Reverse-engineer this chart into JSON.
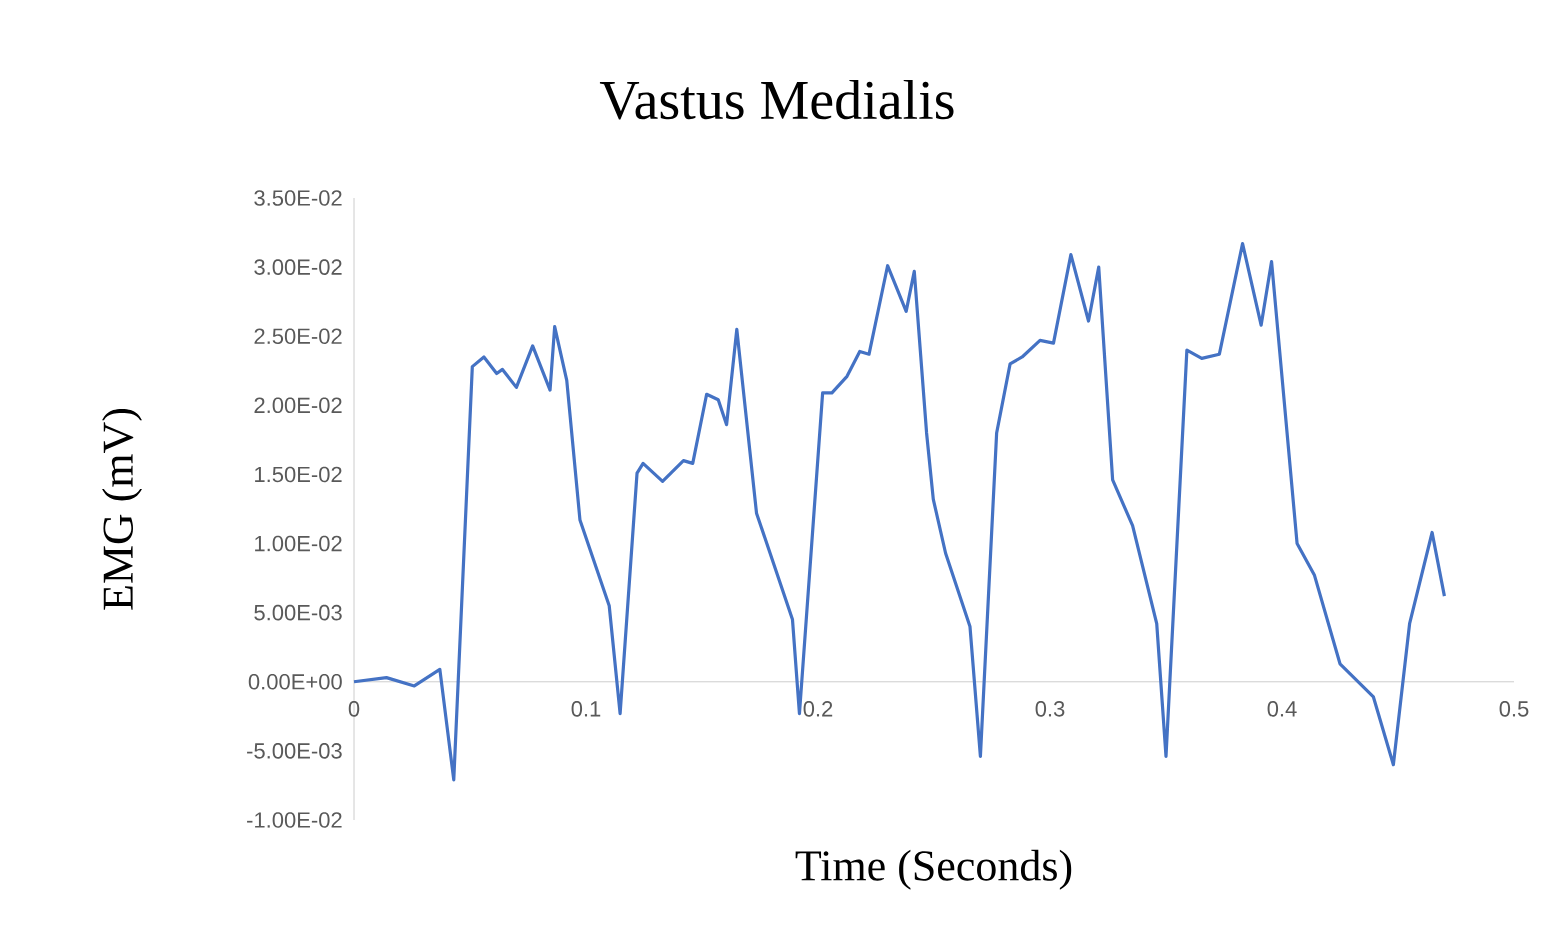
{
  "chart_data": {
    "type": "line",
    "title": "Vastus Medialis",
    "xlabel": "Time (Seconds)",
    "ylabel": "EMG (mV)",
    "xlim": [
      0,
      0.5
    ],
    "xticks": [
      0,
      0.1,
      0.2,
      0.3,
      0.4,
      0.5
    ],
    "ylim": [
      -0.01,
      0.035
    ],
    "yticks": [
      {
        "value": -0.01,
        "label": "-1.00E-02"
      },
      {
        "value": -0.005,
        "label": "-5.00E-03"
      },
      {
        "value": 0,
        "label": "0.00E+00"
      },
      {
        "value": 0.005,
        "label": "5.00E-03"
      },
      {
        "value": 0.01,
        "label": "1.00E-02"
      },
      {
        "value": 0.015,
        "label": "1.50E-02"
      },
      {
        "value": 0.02,
        "label": "2.00E-02"
      },
      {
        "value": 0.025,
        "label": "2.50E-02"
      },
      {
        "value": 0.03,
        "label": "3.00E-02"
      },
      {
        "value": 0.035,
        "label": "3.50E-02"
      }
    ],
    "grid": false,
    "marker": "none",
    "line_style": "solid",
    "series": [
      {
        "color": "#4472c4",
        "x": [
          0,
          0.014,
          0.026,
          0.037,
          0.043,
          0.051,
          0.056,
          0.0615,
          0.064,
          0.07,
          0.077,
          0.0845,
          0.0865,
          0.0917,
          0.0974,
          0.11,
          0.1147,
          0.122,
          0.1246,
          0.133,
          0.142,
          0.146,
          0.152,
          0.157,
          0.1606,
          0.165,
          0.1735,
          0.189,
          0.192,
          0.202,
          0.206,
          0.2125,
          0.218,
          0.222,
          0.23,
          0.238,
          0.2415,
          0.2468,
          0.2497,
          0.255,
          0.2655,
          0.27,
          0.277,
          0.2828,
          0.288,
          0.2957,
          0.3015,
          0.309,
          0.3166,
          0.321,
          0.327,
          0.3356,
          0.346,
          0.35,
          0.359,
          0.3654,
          0.373,
          0.383,
          0.391,
          0.3955,
          0.4065,
          0.414,
          0.425,
          0.4394,
          0.448,
          0.455,
          0.4647,
          0.47
        ],
        "values": [
          0,
          0.0003,
          -0.0003,
          0.0009,
          -0.0071,
          0.0228,
          0.0235,
          0.0223,
          0.0226,
          0.0213,
          0.0243,
          0.0211,
          0.0257,
          0.0218,
          0.0117,
          0.0055,
          -0.0023,
          0.0151,
          0.0158,
          0.0145,
          0.016,
          0.0158,
          0.0208,
          0.0204,
          0.0186,
          0.0255,
          0.0122,
          0.0045,
          -0.0023,
          0.0209,
          0.0209,
          0.0221,
          0.0239,
          0.0237,
          0.0301,
          0.0268,
          0.0297,
          0.018,
          0.0132,
          0.0093,
          0.004,
          -0.0054,
          0.018,
          0.023,
          0.0235,
          0.0247,
          0.0245,
          0.0309,
          0.0261,
          0.03,
          0.0146,
          0.0113,
          0.0042,
          -0.0054,
          0.024,
          0.0234,
          0.0237,
          0.0317,
          0.0258,
          0.0304,
          0.01,
          0.0077,
          0.0013,
          -0.0011,
          -0.006,
          0.0042,
          0.0108,
          0.0062
        ]
      }
    ]
  }
}
